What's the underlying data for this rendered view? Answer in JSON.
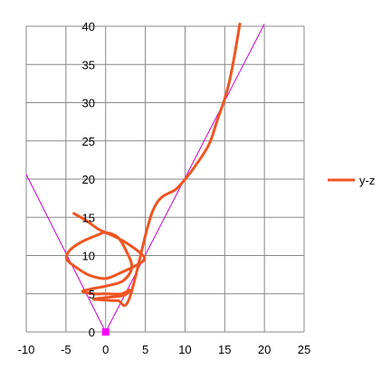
{
  "chart_data": {
    "type": "scatter",
    "title": "",
    "xlabel": "",
    "ylabel": "",
    "xlim": [
      -10,
      25
    ],
    "ylim": [
      0,
      40
    ],
    "x_ticks": [
      "-10",
      "-5",
      "0",
      "5",
      "10",
      "15",
      "20",
      "25"
    ],
    "y_ticks": [
      "0",
      "5",
      "10",
      "15",
      "20",
      "25",
      "30",
      "35",
      "40"
    ],
    "grid": "vertical and horizontal major gridlines",
    "legend": {
      "position": "right",
      "entries": [
        "y-z"
      ]
    },
    "series": [
      {
        "name": "y-z",
        "color": "#ee5522",
        "style": "smooth line",
        "x": [
          -4,
          -2.5,
          -1,
          0,
          1.5,
          3,
          4.5,
          4.9,
          4,
          2,
          0,
          -2,
          -3.5,
          -4.9,
          -4.5,
          -3,
          -1,
          0,
          1.5,
          2.5,
          3.3,
          2.2,
          0,
          -2,
          -2.9,
          -1.5,
          0,
          2,
          3,
          2.3,
          0,
          -1.5,
          -0.5,
          1.5,
          3,
          6,
          9,
          11,
          13,
          14,
          14.5,
          15,
          15.6,
          16.2,
          16.9
        ],
        "y": [
          15.5,
          14.6,
          13.5,
          13,
          12.3,
          11.4,
          10.2,
          9.5,
          8.8,
          7.8,
          7,
          7.4,
          8.3,
          9.5,
          10.7,
          11.8,
          12.7,
          13,
          12.4,
          10.8,
          8.5,
          6.7,
          6,
          5.6,
          5.3,
          5,
          5,
          5,
          5.5,
          4.8,
          4.5,
          4.3,
          4.2,
          4.1,
          4.4,
          16,
          18.8,
          21.3,
          24.5,
          27.5,
          29,
          30.5,
          32.8,
          36,
          40.3
        ]
      },
      {
        "name": "",
        "color": "#cc00cc",
        "style": "line",
        "x": [
          -10,
          0,
          20
        ],
        "y": [
          20.6,
          0,
          40.3
        ]
      },
      {
        "name": "",
        "color": "#ff00ff",
        "style": "square marker",
        "x": [
          0
        ],
        "y": [
          0
        ]
      }
    ]
  }
}
